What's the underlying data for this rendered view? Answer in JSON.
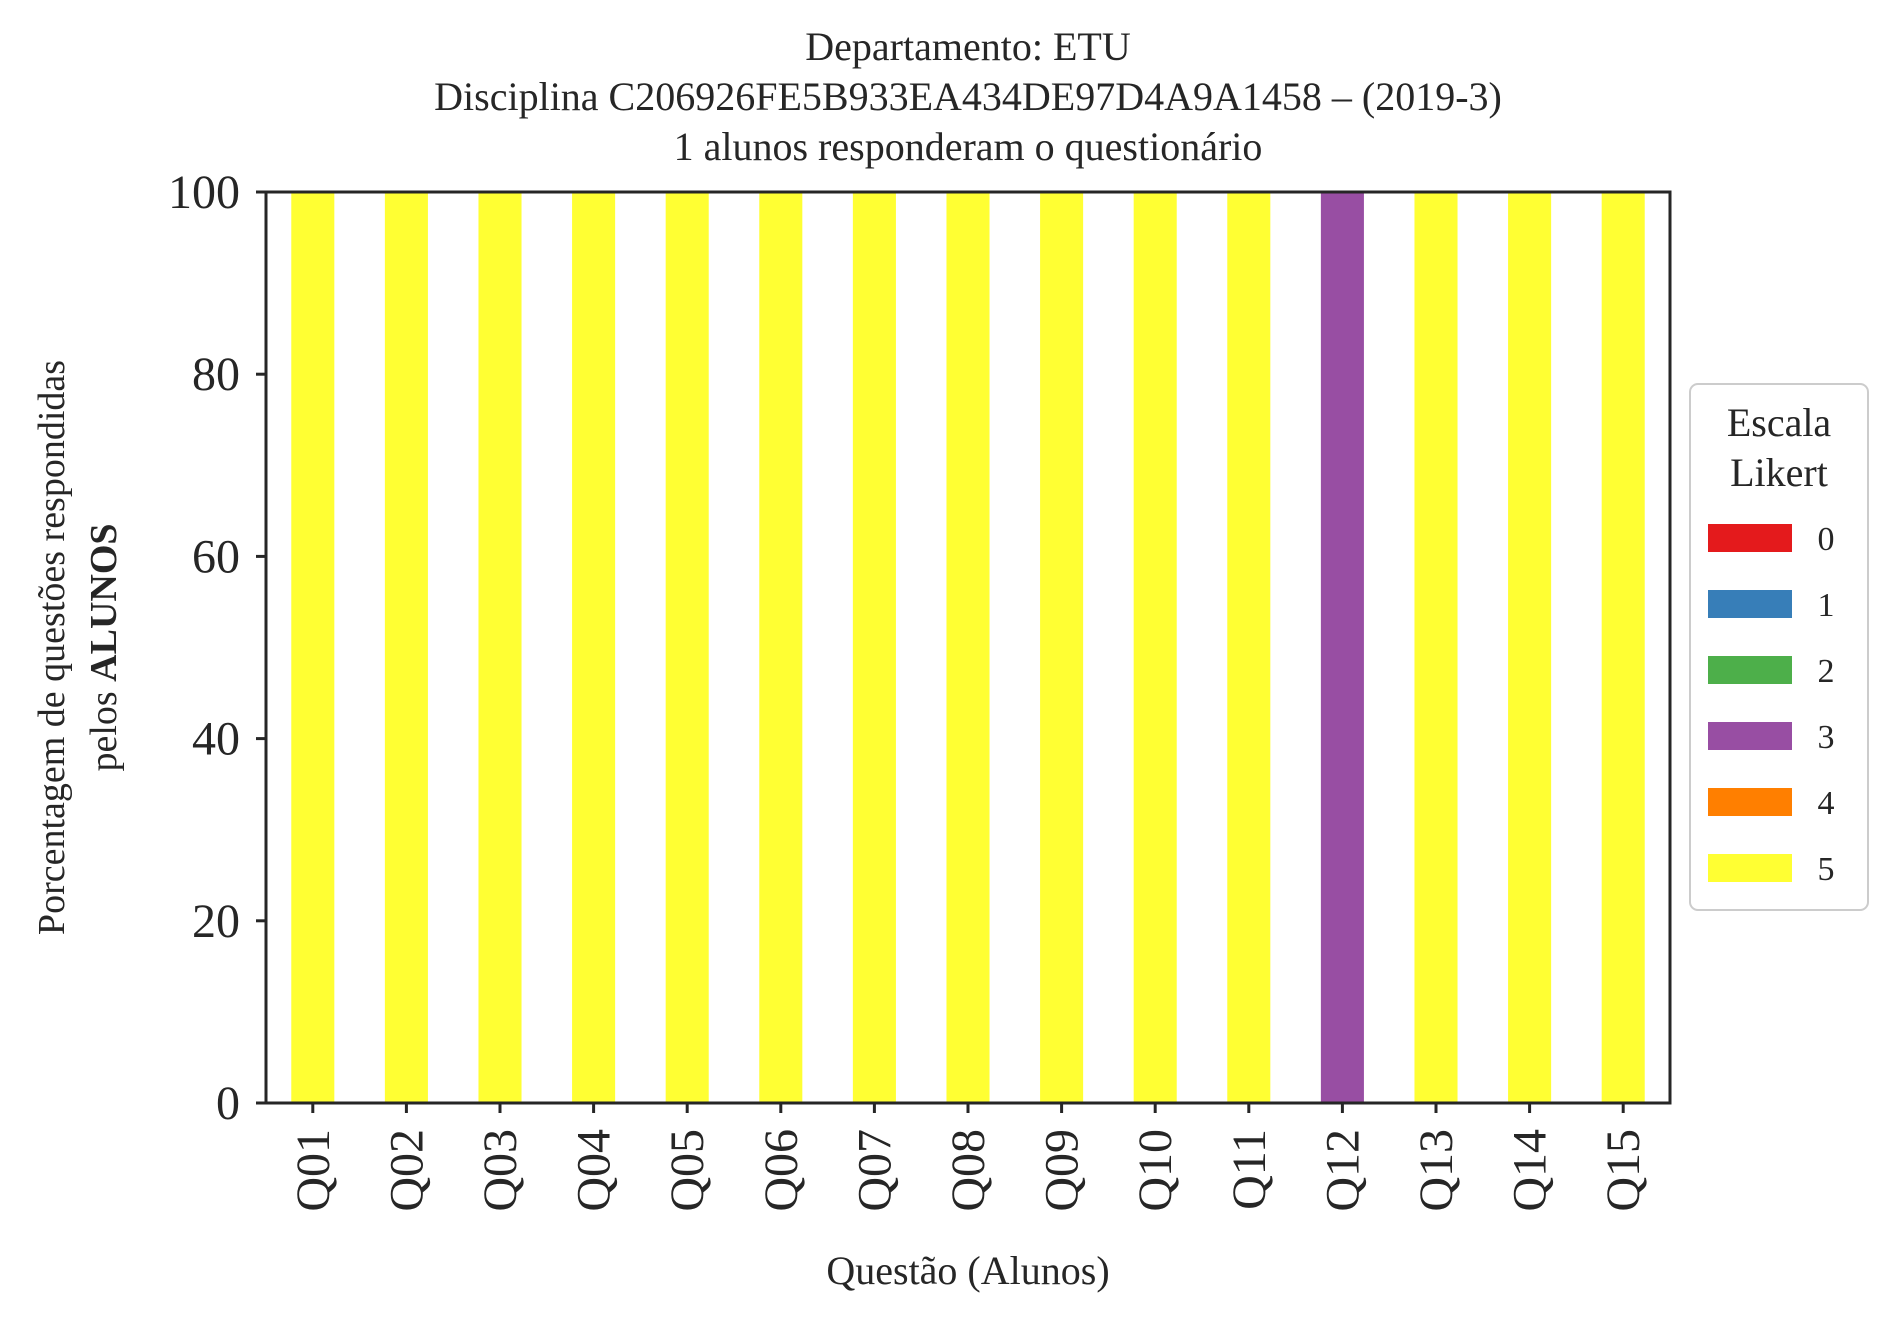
{
  "chart_data": {
    "type": "bar",
    "stacked": true,
    "title_lines": [
      "Departamento: ETU",
      "Disciplina C206926FE5B933EA434DE97D4A9A1458 – (2019-3)",
      "1 alunos responderam o questionário"
    ],
    "xlabel": "Questão (Alunos)",
    "ylabel_line1": "Porcentagem de questões respondidas",
    "ylabel_line2_prefix": "pelos ",
    "ylabel_line2_bold": "ALUNOS",
    "ylim": [
      0,
      100
    ],
    "yticks": [
      0,
      20,
      40,
      60,
      80,
      100
    ],
    "grid": false,
    "categories": [
      "Q01",
      "Q02",
      "Q03",
      "Q04",
      "Q05",
      "Q06",
      "Q07",
      "Q08",
      "Q09",
      "Q10",
      "Q11",
      "Q12",
      "Q13",
      "Q14",
      "Q15"
    ],
    "series": [
      {
        "name": "0",
        "color": "#e41a1c",
        "values": [
          0,
          0,
          0,
          0,
          0,
          0,
          0,
          0,
          0,
          0,
          0,
          0,
          0,
          0,
          0
        ]
      },
      {
        "name": "1",
        "color": "#377eb8",
        "values": [
          0,
          0,
          0,
          0,
          0,
          0,
          0,
          0,
          0,
          0,
          0,
          0,
          0,
          0,
          0
        ]
      },
      {
        "name": "2",
        "color": "#4daf4a",
        "values": [
          0,
          0,
          0,
          0,
          0,
          0,
          0,
          0,
          0,
          0,
          0,
          0,
          0,
          0,
          0
        ]
      },
      {
        "name": "3",
        "color": "#984ea3",
        "values": [
          0,
          0,
          0,
          0,
          0,
          0,
          0,
          0,
          0,
          0,
          0,
          100,
          0,
          0,
          0
        ]
      },
      {
        "name": "4",
        "color": "#ff7f00",
        "values": [
          0,
          0,
          0,
          0,
          0,
          0,
          0,
          0,
          0,
          0,
          0,
          0,
          0,
          0,
          0
        ]
      },
      {
        "name": "5",
        "color": "#ffff33",
        "values": [
          100,
          100,
          100,
          100,
          100,
          100,
          100,
          100,
          100,
          100,
          100,
          0,
          100,
          100,
          100
        ]
      }
    ],
    "legend": {
      "title_lines": [
        "Escala",
        "Likert"
      ],
      "placement": "outside-right"
    }
  }
}
